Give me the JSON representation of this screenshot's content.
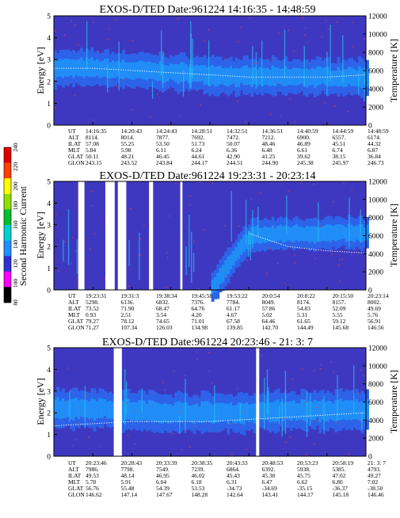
{
  "colors": {
    "background": "#3e38c0",
    "band_core": "#1f8ff7",
    "band_halo": "#2d63e8",
    "spike": "#26b8f4",
    "speckle": "#d14a4a",
    "trace": "#f0f0f0"
  },
  "colorbar": {
    "label": "Second Harmonic Current",
    "ticks": [
      "80",
      "100",
      "120",
      "140",
      "160",
      "180",
      "200",
      "220",
      "240"
    ],
    "colors": [
      "#000000",
      "#ff00ff",
      "#3030d0",
      "#1e90ff",
      "#00d0d0",
      "#00c030",
      "#90e000",
      "#ffff00",
      "#ff4000",
      "#e00000"
    ]
  },
  "chart_data": [
    {
      "type": "heatmap",
      "title": "EXOS-D/TED    Date:961224   14:16:35 - 14:48:59",
      "ylabel": "Energy [eV]",
      "ylabel_right": "Temperature [K]",
      "ylim": [
        0,
        5
      ],
      "ylim_right": [
        0,
        12000
      ],
      "yticks": [
        "0",
        "1",
        "2",
        "3",
        "4",
        "5"
      ],
      "yticks_right": [
        "0",
        "2000",
        "4000",
        "6000",
        "8000",
        "10000",
        "12000"
      ],
      "band": {
        "center": [
          2.6,
          2.6,
          2.5,
          2.4,
          2.3,
          2.2,
          2.2,
          2.2,
          2.2
        ],
        "width": 1.0
      },
      "gaps": [],
      "trace": [
        2.6,
        2.6,
        2.5,
        2.4,
        2.3,
        2.2,
        2.2,
        2.2,
        2.3
      ],
      "orbit": {
        "row_labels": [
          "UT",
          "ALT",
          "ILAT",
          "MLT",
          "GLAT",
          "GLON"
        ],
        "columns": [
          [
            "14:16:35",
            "8114.",
            "57.08",
            "5.84",
            "50.11",
            "243.15"
          ],
          [
            "14:20:43",
            "8014.",
            "55.25",
            "5.98",
            "48.21",
            "243.52"
          ],
          [
            "14:24:43",
            "7877.",
            "53.50",
            "6.11",
            "46.45",
            "243.84"
          ],
          [
            "14:28:51",
            "7692.",
            "51.73",
            "6.24",
            "44.61",
            "244.17"
          ],
          [
            "14:32:51",
            "7472.",
            "50.07",
            "6.36",
            "42.90",
            "244.51"
          ],
          [
            "14:36:51",
            "7212.",
            "48.46",
            "6.48",
            "41.25",
            "244.90"
          ],
          [
            "14:40:59",
            "6900.",
            "46.89",
            "6.61",
            "39.62",
            "245.38"
          ],
          [
            "14:44:59",
            "6557.",
            "45.51",
            "6.74",
            "38.15",
            "245.97"
          ],
          [
            "14:48:59",
            "6174.",
            "44.32",
            "6.87",
            "36.84",
            "246.73"
          ]
        ]
      }
    },
    {
      "type": "heatmap",
      "title": "EXOS-D/TED    Date:961224   19:23:31 - 20:23:14",
      "ylabel": "Energy [eV]",
      "ylabel_right": "Temperature [K]",
      "ylim": [
        0,
        5
      ],
      "ylim_right": [
        0,
        12000
      ],
      "yticks": [
        "0",
        "1",
        "2",
        "3",
        "4",
        "5"
      ],
      "yticks_right": [
        "0",
        "2000",
        "4000",
        "6000",
        "8000",
        "10000",
        "12000"
      ],
      "band": {
        "center": [
          0,
          0,
          0,
          0,
          0,
          2.5,
          2.6,
          2.6,
          2.6
        ],
        "width": 0.9
      },
      "gaps": [
        [
          0.078,
          0.098
        ],
        [
          0.165,
          0.195
        ],
        [
          0.205,
          0.232
        ],
        [
          0.305,
          0.318
        ],
        [
          0.405,
          0.412
        ]
      ],
      "trace": [
        0,
        0,
        0,
        0,
        0,
        2.6,
        2.0,
        1.8,
        1.7
      ],
      "orbit": {
        "row_labels": [
          "UT",
          "ALT",
          "ILAT",
          "MLT",
          "GLAT",
          "GLON"
        ],
        "columns": [
          [
            "19:23:31",
            "5298.",
            "73.52",
            "0.93",
            "79.27",
            "71.27"
          ],
          [
            "19:31:3",
            "6136.",
            "71.90",
            "2.51",
            "78.12",
            "107.34"
          ],
          [
            "19:38:34",
            "6832.",
            "68.47",
            "3.54",
            "74.65",
            "126.03"
          ],
          [
            "19:45:58",
            "7376.",
            "64.76",
            "4.20",
            "71.01",
            "134.98"
          ],
          [
            "19:53:22",
            "7784.",
            "61.17",
            "4.67",
            "67.58",
            "139.85"
          ],
          [
            "20:0:54",
            "8049.",
            "57.86",
            "5.02",
            "64.46",
            "142.70"
          ],
          [
            "20:8:22",
            "8174.",
            "54.83",
            "5.31",
            "61.65",
            "144.49"
          ],
          [
            "20:15:50",
            "8157.",
            "52.09",
            "5.55",
            "59.12",
            "145.68"
          ],
          [
            "20:23:14",
            "8002.",
            "49.69",
            "5.76",
            "56.91",
            "146.56"
          ]
        ]
      }
    },
    {
      "type": "heatmap",
      "title": "EXOS-D/TED    Date:961224   20:23:46 - 21: 3: 7",
      "ylabel": "Energy [eV]",
      "ylabel_right": "Temperature [K]",
      "ylim": [
        0,
        5
      ],
      "ylim_right": [
        0,
        12000
      ],
      "yticks": [
        "0",
        "1",
        "2",
        "3",
        "4",
        "5"
      ],
      "yticks_right": [
        "0",
        "2000",
        "4000",
        "6000",
        "8000",
        "10000",
        "12000"
      ],
      "band": {
        "center": [
          2.2,
          2.2,
          2.1,
          2.0,
          2.0,
          2.0,
          2.1,
          2.1,
          2.1
        ],
        "width": 1.1
      },
      "gaps": [
        [
          0.192,
          0.218
        ],
        [
          0.648,
          0.658
        ]
      ],
      "trace": [
        1.4,
        1.5,
        1.6,
        1.6,
        1.6,
        1.7,
        1.8,
        1.9,
        2.0
      ],
      "orbit": {
        "row_labels": [
          "UT",
          "ALT",
          "ILAT",
          "MLT",
          "GLAT",
          "GLON"
        ],
        "columns": [
          [
            "20:23:46",
            "7986.",
            "49.53",
            "5.78",
            "56.76",
            "146.62"
          ],
          [
            "20:28:43",
            "7798.",
            "48.14",
            "5.91",
            "55.48",
            "147.14"
          ],
          [
            "20:33:39",
            "7549.",
            "46.95",
            "6.04",
            "54.39",
            "147.67"
          ],
          [
            "20:38:35",
            "7239.",
            "46.02",
            "6.18",
            "53.53",
            "148.28"
          ],
          [
            "20:43:33",
            "6864.",
            "45.43",
            "6.31",
            "-34.73",
            "142.64"
          ],
          [
            "20:48:53",
            "6392.",
            "45.30",
            "6.47",
            "-34.69",
            "143.41"
          ],
          [
            "20:53:23",
            "5938.",
            "45.75",
            "6.62",
            "-35.15",
            "144.17"
          ],
          [
            "20:58:19",
            "5385.",
            "47.02",
            "6.80",
            "-36.37",
            "145.18"
          ],
          [
            "21: 3: 7",
            "4793.",
            "49.27",
            "7.02",
            "-38.50",
            "146.46"
          ]
        ]
      }
    }
  ]
}
